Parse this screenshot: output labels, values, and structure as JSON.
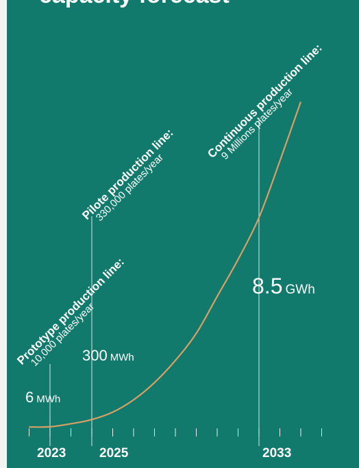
{
  "chart_data": {
    "type": "line",
    "title": "capacity forecast",
    "unit_note": "",
    "x_ticks_labeled": [
      "2023",
      "2025",
      "2033"
    ],
    "series": [
      {
        "x": [
          2022,
          2023,
          2024,
          2025,
          2026,
          2027,
          2028,
          2029,
          2030,
          2031,
          2032,
          2033,
          2034,
          2035
        ],
        "y": [
          0,
          0.006,
          0.13,
          0.3,
          0.6,
          1.1,
          1.8,
          2.7,
          3.8,
          5.3,
          6.8,
          8.5,
          10.8,
          13.2
        ]
      }
    ],
    "points": [
      {
        "year": "2023",
        "value": "6",
        "unit": "MWh"
      },
      {
        "year": "2025",
        "value": "300",
        "unit": "MWh"
      },
      {
        "year": "2033",
        "value": "8.5",
        "unit": "GWh"
      }
    ],
    "annotations": [
      {
        "year": "2023",
        "name": "Prototype production line:",
        "capacity": "10,000 plates/year"
      },
      {
        "year": "2025",
        "name": "Pilote production line:",
        "capacity": "330,000 plates/year"
      },
      {
        "year": "2033",
        "name": "Continuous production line:",
        "capacity": "9 Millions plates/year"
      }
    ],
    "colors": {
      "background": "#117a6c",
      "line": "#d9a066",
      "text": "#ffffff"
    }
  }
}
